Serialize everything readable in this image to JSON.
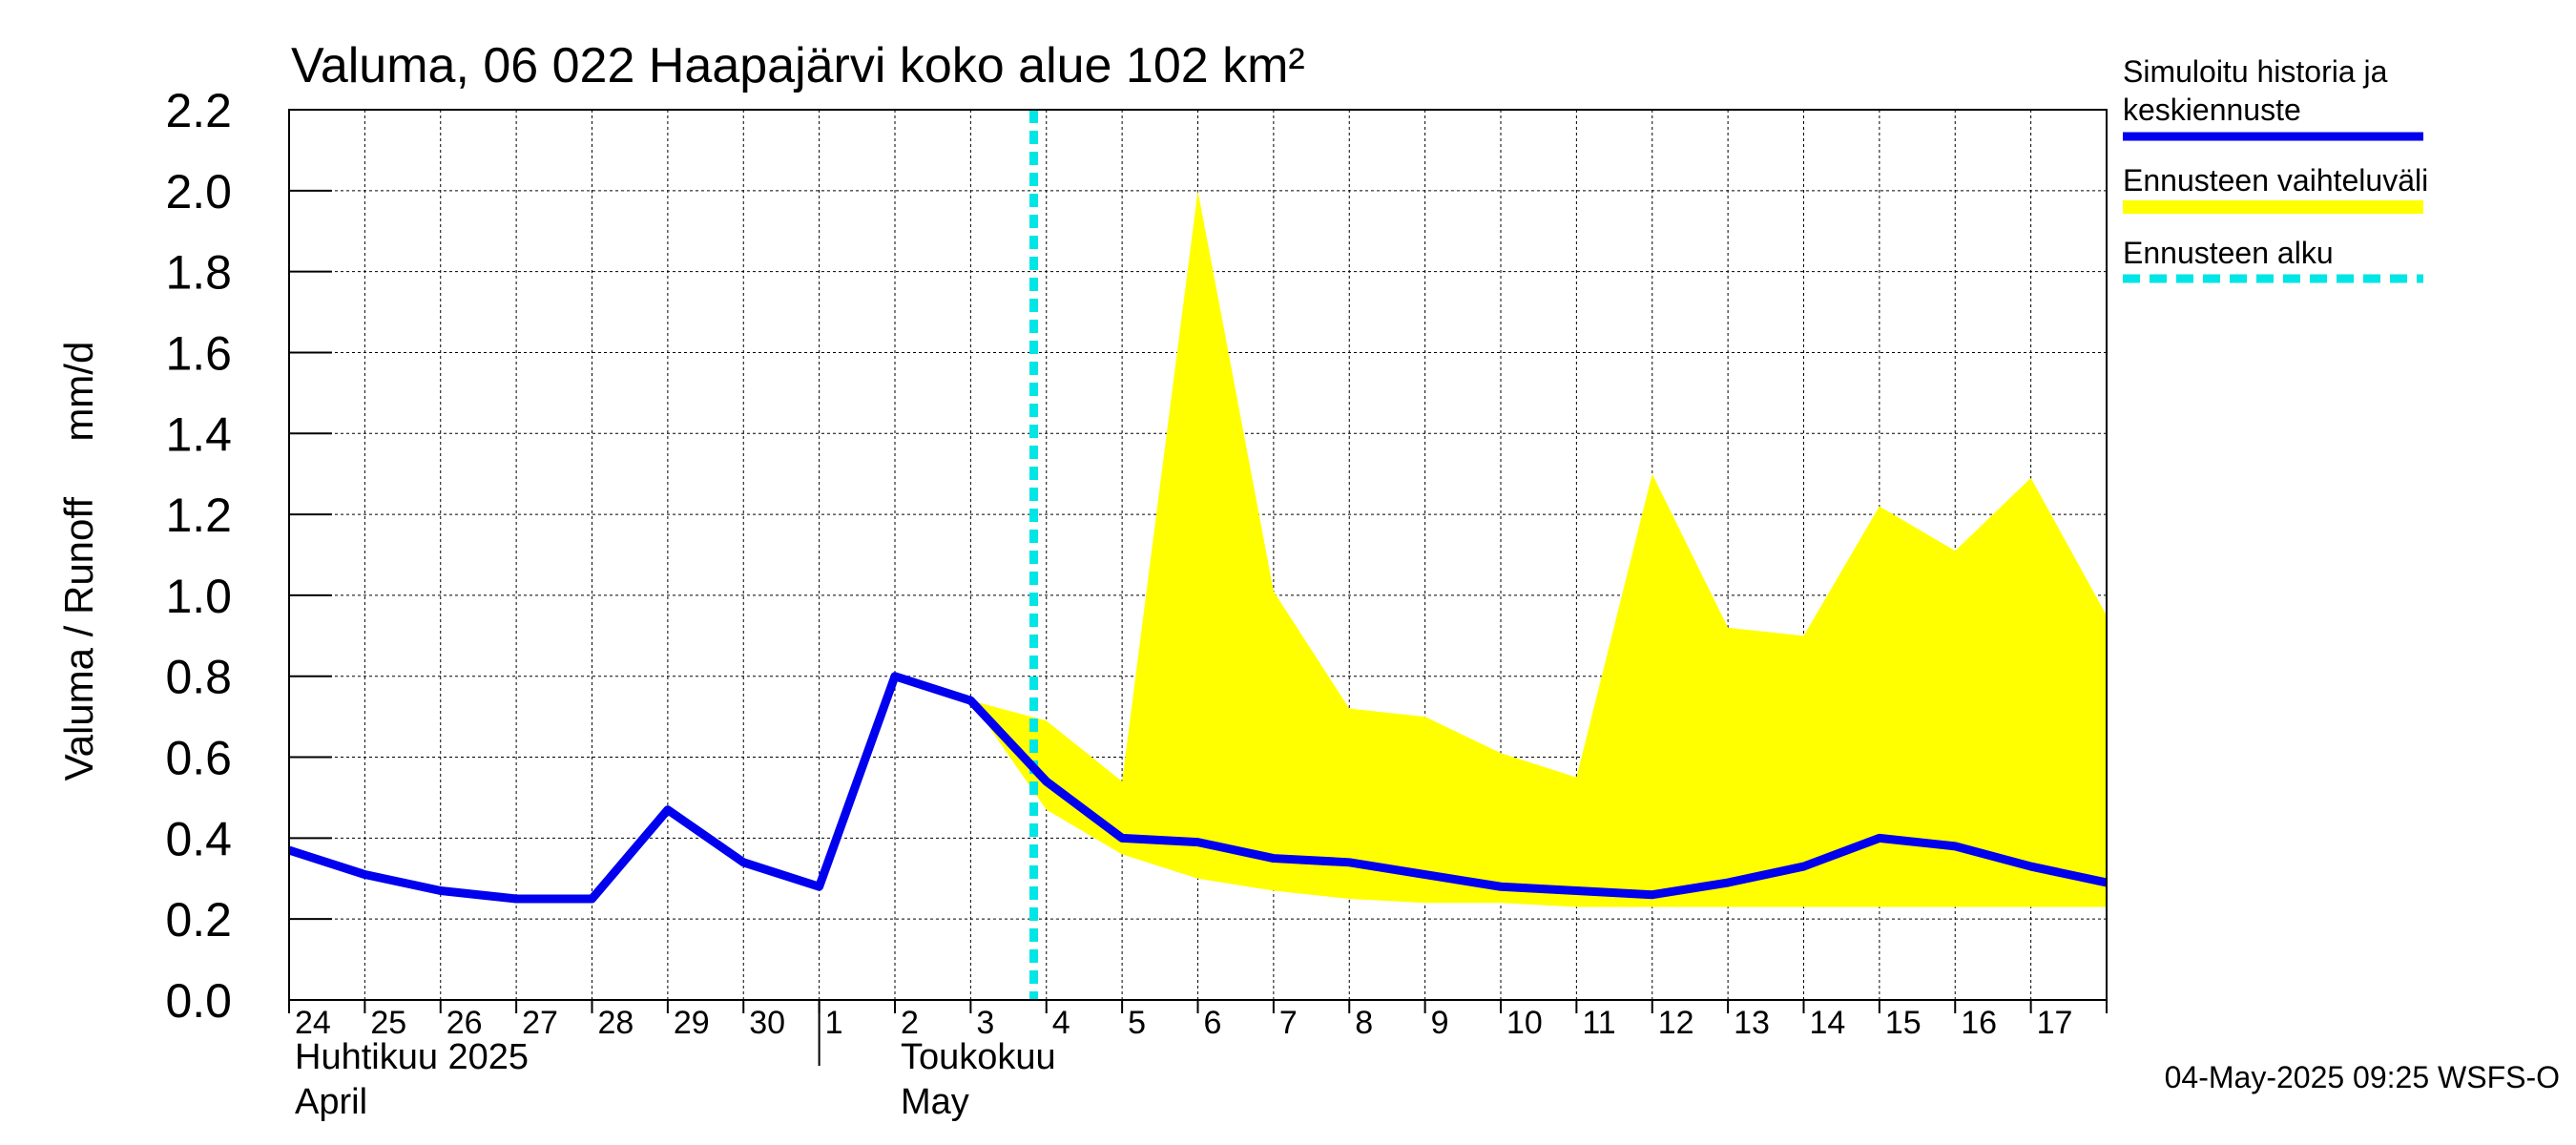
{
  "chart_data": {
    "type": "line",
    "title": "Valuma, 06 022 Haapajärvi koko alue 102 km²",
    "ylabel": "Valuma / Runoff     mm/d",
    "ylim": [
      0,
      2.2
    ],
    "yticks": [
      "0.0",
      "0.2",
      "0.4",
      "0.6",
      "0.8",
      "1.0",
      "1.2",
      "1.4",
      "1.6",
      "1.8",
      "2.0",
      "2.2"
    ],
    "xlim": [
      "2025-04-24",
      "2025-05-17"
    ],
    "x_day_labels": [
      "24",
      "25",
      "26",
      "27",
      "28",
      "29",
      "30",
      "1",
      "2",
      "3",
      "4",
      "5",
      "6",
      "7",
      "8",
      "9",
      "10",
      "11",
      "12",
      "13",
      "14",
      "15",
      "16",
      "17"
    ],
    "month_labels": [
      {
        "line1": "Huhtikuu  2025",
        "line2": "April"
      },
      {
        "line1": "Toukokuu",
        "line2": "May"
      }
    ],
    "grid": true,
    "legend_position": "right",
    "forecast_start": "2025-05-03T20:00",
    "series": [
      {
        "name": "Simuloitu historia ja keskiennuste",
        "kind": "line",
        "color": "#0000ee",
        "x": [
          "2025-04-24",
          "2025-04-25",
          "2025-04-26",
          "2025-04-27",
          "2025-04-28",
          "2025-04-29",
          "2025-04-30",
          "2025-05-01",
          "2025-05-02",
          "2025-05-03",
          "2025-05-04",
          "2025-05-05",
          "2025-05-06",
          "2025-05-07",
          "2025-05-08",
          "2025-05-09",
          "2025-05-10",
          "2025-05-11",
          "2025-05-12",
          "2025-05-13",
          "2025-05-14",
          "2025-05-15",
          "2025-05-16",
          "2025-05-17",
          "2025-05-18"
        ],
        "y": [
          0.37,
          0.31,
          0.27,
          0.25,
          0.25,
          0.47,
          0.34,
          0.28,
          0.8,
          0.74,
          0.54,
          0.4,
          0.39,
          0.35,
          0.34,
          0.31,
          0.28,
          0.27,
          0.26,
          0.29,
          0.33,
          0.4,
          0.38,
          0.33,
          0.29
        ]
      },
      {
        "name": "Ennusteen vaihteluväli",
        "kind": "band",
        "color": "#ffff00",
        "x": [
          "2025-05-03",
          "2025-05-04",
          "2025-05-05",
          "2025-05-06",
          "2025-05-07",
          "2025-05-08",
          "2025-05-09",
          "2025-05-10",
          "2025-05-11",
          "2025-05-12",
          "2025-05-13",
          "2025-05-14",
          "2025-05-15",
          "2025-05-16",
          "2025-05-17",
          "2025-05-18"
        ],
        "upper": [
          0.74,
          0.69,
          0.54,
          2.0,
          1.01,
          0.72,
          0.7,
          0.61,
          0.55,
          1.3,
          0.92,
          0.9,
          1.22,
          1.11,
          1.29,
          0.95
        ],
        "lower": [
          0.74,
          0.47,
          0.36,
          0.3,
          0.27,
          0.25,
          0.24,
          0.24,
          0.23,
          0.23,
          0.23,
          0.23,
          0.23,
          0.23,
          0.23,
          0.23
        ]
      },
      {
        "name": "Ennusteen alku",
        "kind": "vline",
        "color": "#00e5e5"
      }
    ]
  },
  "legend": {
    "items": [
      {
        "line1": "Simuloitu historia ja",
        "line2": "keskiennuste",
        "color": "#0000ee",
        "style": "solid"
      },
      {
        "line1": "Ennusteen vaihteluväli",
        "line2": "",
        "color": "#ffff00",
        "style": "solid"
      },
      {
        "line1": "Ennusteen alku",
        "line2": "",
        "color": "#00e5e5",
        "style": "dashed"
      }
    ]
  },
  "footer": {
    "timestamp": "04-May-2025 09:25 WSFS-O"
  }
}
